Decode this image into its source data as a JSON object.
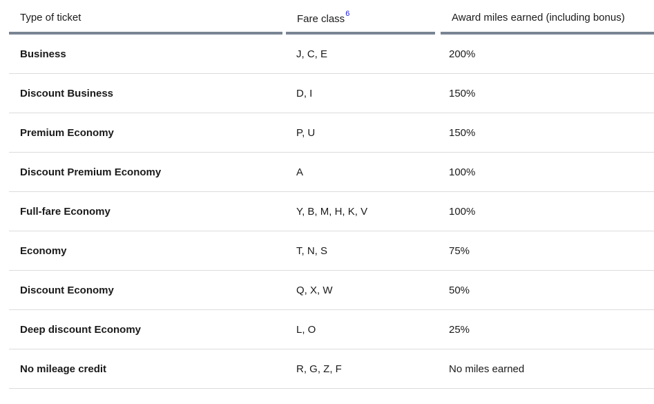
{
  "theme": {
    "rule_color": "#7a8593",
    "link_color": "#1a1ad6",
    "row_divider_color": "#dcdcdc"
  },
  "table": {
    "headers": {
      "type": "Type of ticket",
      "fare": "Fare class",
      "fare_footnote": "6",
      "miles": "Award miles earned (including bonus)"
    },
    "rows": [
      {
        "type": "Business",
        "fare": "J, C, E",
        "miles": "200%"
      },
      {
        "type": "Discount Business",
        "fare": "D, I",
        "miles": "150%"
      },
      {
        "type": "Premium Economy",
        "fare": "P, U",
        "miles": "150%"
      },
      {
        "type": "Discount Premium Economy",
        "fare": "A",
        "miles": "100%"
      },
      {
        "type": "Full-fare Economy",
        "fare": "Y, B, M, H, K, V",
        "miles": "100%"
      },
      {
        "type": "Economy",
        "fare": "T, N, S",
        "miles": "75%"
      },
      {
        "type": "Discount Economy",
        "fare": "Q, X, W",
        "miles": "50%"
      },
      {
        "type": "Deep discount Economy",
        "fare": "L, O",
        "miles": "25%"
      },
      {
        "type": "No mileage credit",
        "fare": "R, G, Z, F",
        "miles": "No miles earned"
      }
    ]
  }
}
